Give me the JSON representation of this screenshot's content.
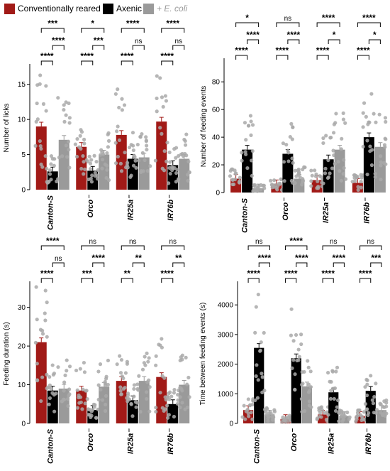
{
  "legend": [
    {
      "label": "Conventionally reared",
      "color": "#a11a17"
    },
    {
      "label": "Axenic",
      "color": "#000000"
    },
    {
      "label": "+ E. coli",
      "color": "#9a9a9a"
    }
  ],
  "chart_data": [
    {
      "type": "bar",
      "ylabel": "Number of licks",
      "ylim": [
        0,
        17.5
      ],
      "yticks": [
        0,
        5,
        10,
        15
      ],
      "categories": [
        "Canton-S",
        "Orco⁻",
        "IR25a⁻",
        "IR76b⁻"
      ],
      "series": [
        {
          "name": "Conventionally reared",
          "color": "#a11a17",
          "values": [
            9.0,
            6.1,
            7.8,
            9.7
          ]
        },
        {
          "name": "Axenic",
          "color": "#000000",
          "values": [
            2.6,
            2.7,
            4.4,
            3.5
          ]
        },
        {
          "name": "+ E. coli",
          "color": "#9a9a9a",
          "values": [
            7.1,
            5.0,
            4.6,
            4.4
          ]
        }
      ],
      "significance": [
        [
          "***",
          "****",
          "****"
        ],
        [
          "*",
          "****",
          "***"
        ],
        [
          "****",
          "****",
          "ns"
        ],
        [
          "****",
          "****",
          "ns"
        ]
      ]
    },
    {
      "type": "bar",
      "ylabel": "Number of feeding events",
      "ylim": [
        0,
        95
      ],
      "yticks": [
        0,
        20,
        40,
        60,
        80
      ],
      "categories": [
        "Canton-S",
        "Orco⁻",
        "IR25a⁻",
        "IR76b⁻"
      ],
      "series": [
        {
          "name": "Conventionally reared",
          "color": "#a11a17",
          "values": [
            10,
            6,
            9,
            7
          ]
        },
        {
          "name": "Axenic",
          "color": "#000000",
          "values": [
            31,
            28,
            24,
            40
          ]
        },
        {
          "name": "+ E. coli",
          "color": "#9a9a9a",
          "values": [
            3,
            10,
            31,
            33
          ]
        }
      ],
      "significance": [
        [
          "*",
          "****",
          "****"
        ],
        [
          "ns",
          "****",
          "****"
        ],
        [
          "****",
          "****",
          "*"
        ],
        [
          "****",
          "****",
          "*"
        ]
      ]
    },
    {
      "type": "bar",
      "ylabel": "Feeding duration (s)",
      "ylim": [
        0,
        36
      ],
      "yticks": [
        0,
        10,
        20,
        30
      ],
      "categories": [
        "Canton-S",
        "Orco⁻",
        "IR25a⁻",
        "IR76b⁻"
      ],
      "series": [
        {
          "name": "Conventionally reared",
          "color": "#a11a17",
          "values": [
            21,
            8.5,
            11,
            12
          ]
        },
        {
          "name": "Axenic",
          "color": "#000000",
          "values": [
            8.5,
            3.5,
            6,
            5
          ]
        },
        {
          "name": "+ E. coli",
          "color": "#9a9a9a",
          "values": [
            9,
            9.5,
            11,
            10
          ]
        }
      ],
      "significance": [
        [
          "****",
          "****",
          "ns"
        ],
        [
          "ns",
          "***",
          "****"
        ],
        [
          "ns",
          "**",
          "**"
        ],
        [
          "ns",
          "****",
          "**"
        ]
      ]
    },
    {
      "type": "bar",
      "ylabel": "Time between feeding events (s)",
      "ylim": [
        0,
        4700
      ],
      "yticks": [
        0,
        1000,
        2000,
        3000,
        4000
      ],
      "categories": [
        "Canton-S",
        "Orco⁻",
        "IR25a⁻",
        "IR76b⁻"
      ],
      "series": [
        {
          "name": "Conventionally reared",
          "color": "#a11a17",
          "values": [
            450,
            150,
            300,
            250
          ]
        },
        {
          "name": "Axenic",
          "color": "#000000",
          "values": [
            2550,
            2200,
            1050,
            1100
          ]
        },
        {
          "name": "+ E. coli",
          "color": "#9a9a9a",
          "values": [
            300,
            1250,
            250,
            450
          ]
        }
      ],
      "significance": [
        [
          "ns",
          "****",
          "****"
        ],
        [
          "****",
          "****",
          "****"
        ],
        [
          "ns",
          "****",
          "****"
        ],
        [
          "ns",
          "****",
          "***"
        ]
      ]
    }
  ]
}
